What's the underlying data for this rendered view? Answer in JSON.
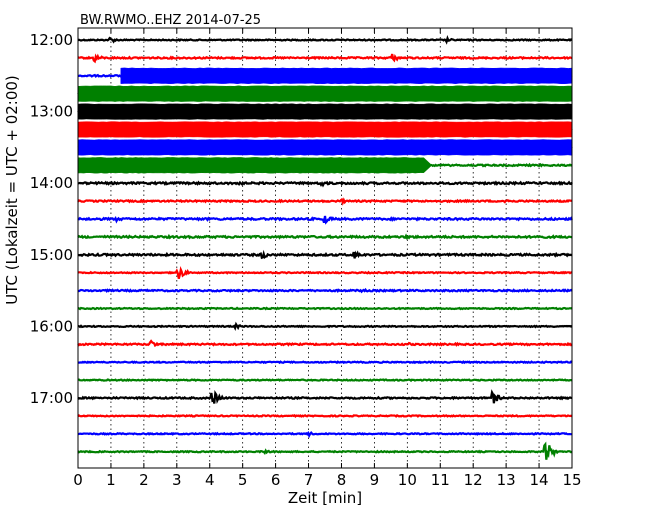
{
  "chart_data": {
    "type": "line",
    "title": "BW.RWMO..EHZ 2014-07-25",
    "xlabel": "Zeit  [min]",
    "ylabel": "UTC (Lokalzeit = UTC + 02:00)",
    "xlim": [
      0,
      15
    ],
    "xticks": [
      "0",
      "1",
      "2",
      "3",
      "4",
      "5",
      "6",
      "7",
      "8",
      "9",
      "10",
      "11",
      "12",
      "13",
      "14",
      "15"
    ],
    "yticks": [
      {
        "label": "12:00",
        "row": 0
      },
      {
        "label": "13:00",
        "row": 4
      },
      {
        "label": "14:00",
        "row": 8
      },
      {
        "label": "15:00",
        "row": 12
      },
      {
        "label": "16:00",
        "row": 16
      },
      {
        "label": "17:00",
        "row": 20
      }
    ],
    "grid": "vertical dotted lines at each minute",
    "colors": [
      "#000000",
      "#ff0000",
      "#0000ff",
      "#008000"
    ],
    "series": [
      {
        "start": "12:00",
        "color": "#000000",
        "base_amplitude": 0.03,
        "events": [
          {
            "t": 1.0,
            "amp": 0.15
          },
          {
            "t": 11.2,
            "amp": 0.12
          }
        ]
      },
      {
        "start": "12:15",
        "color": "#ff0000",
        "base_amplitude": 0.04,
        "events": [
          {
            "t": 0.5,
            "amp": 0.25
          },
          {
            "t": 9.5,
            "amp": 0.3
          }
        ]
      },
      {
        "start": "12:30",
        "color": "#0000ff",
        "base_amplitude": 0.04,
        "saturated_from": 1.3,
        "saturated_to": 15,
        "events": []
      },
      {
        "start": "12:45",
        "color": "#008000",
        "base_amplitude": 0.04,
        "saturated_from": 0,
        "saturated_to": 15,
        "events": []
      },
      {
        "start": "13:00",
        "color": "#000000",
        "base_amplitude": 0.04,
        "saturated_from": 0,
        "saturated_to": 15,
        "events": []
      },
      {
        "start": "13:15",
        "color": "#ff0000",
        "base_amplitude": 0.04,
        "saturated_from": 0,
        "saturated_to": 15,
        "events": []
      },
      {
        "start": "13:30",
        "color": "#0000ff",
        "base_amplitude": 0.04,
        "saturated_from": 0,
        "saturated_to": 15,
        "events": []
      },
      {
        "start": "13:45",
        "color": "#008000",
        "base_amplitude": 0.04,
        "saturated_from": 0,
        "saturated_to": 10.5,
        "events": []
      },
      {
        "start": "14:00",
        "color": "#000000",
        "base_amplitude": 0.05,
        "events": [
          {
            "t": 4.8,
            "amp": 0.2
          },
          {
            "t": 7.4,
            "amp": 0.18
          }
        ]
      },
      {
        "start": "14:15",
        "color": "#ff0000",
        "base_amplitude": 0.04,
        "events": [
          {
            "t": 8.0,
            "amp": 0.12
          },
          {
            "t": 13.0,
            "amp": 0.12
          }
        ]
      },
      {
        "start": "14:30",
        "color": "#0000ff",
        "base_amplitude": 0.05,
        "events": [
          {
            "t": 7.5,
            "amp": 0.25
          },
          {
            "t": 1.2,
            "amp": 0.12
          }
        ]
      },
      {
        "start": "14:45",
        "color": "#008000",
        "base_amplitude": 0.05,
        "events": [
          {
            "t": 14.0,
            "amp": 0.15
          },
          {
            "t": 10.0,
            "amp": 0.1
          }
        ]
      },
      {
        "start": "15:00",
        "color": "#000000",
        "base_amplitude": 0.05,
        "events": [
          {
            "t": 5.6,
            "amp": 0.22
          },
          {
            "t": 8.4,
            "amp": 0.25
          }
        ]
      },
      {
        "start": "15:15",
        "color": "#ff0000",
        "base_amplitude": 0.03,
        "events": [
          {
            "t": 3.0,
            "amp": 0.55
          }
        ]
      },
      {
        "start": "15:30",
        "color": "#0000ff",
        "base_amplitude": 0.04,
        "events": [
          {
            "t": 8.6,
            "amp": 0.12
          }
        ]
      },
      {
        "start": "15:45",
        "color": "#008000",
        "base_amplitude": 0.03,
        "events": []
      },
      {
        "start": "16:00",
        "color": "#000000",
        "base_amplitude": 0.03,
        "events": [
          {
            "t": 4.8,
            "amp": 0.12
          }
        ]
      },
      {
        "start": "16:15",
        "color": "#ff0000",
        "base_amplitude": 0.04,
        "events": [
          {
            "t": 2.2,
            "amp": 0.25
          },
          {
            "t": 10.0,
            "amp": 0.1
          }
        ]
      },
      {
        "start": "16:30",
        "color": "#0000ff",
        "base_amplitude": 0.03,
        "events": []
      },
      {
        "start": "16:45",
        "color": "#008000",
        "base_amplitude": 0.03,
        "events": []
      },
      {
        "start": "17:00",
        "color": "#000000",
        "base_amplitude": 0.04,
        "events": [
          {
            "t": 4.1,
            "amp": 0.45
          },
          {
            "t": 12.6,
            "amp": 0.35
          }
        ]
      },
      {
        "start": "17:15",
        "color": "#ff0000",
        "base_amplitude": 0.03,
        "events": []
      },
      {
        "start": "17:30",
        "color": "#0000ff",
        "base_amplitude": 0.03,
        "events": [
          {
            "t": 7.0,
            "amp": 0.12
          }
        ]
      },
      {
        "start": "17:45",
        "color": "#008000",
        "base_amplitude": 0.03,
        "events": [
          {
            "t": 14.2,
            "amp": 0.7
          },
          {
            "t": 5.7,
            "amp": 0.12
          }
        ]
      }
    ]
  }
}
